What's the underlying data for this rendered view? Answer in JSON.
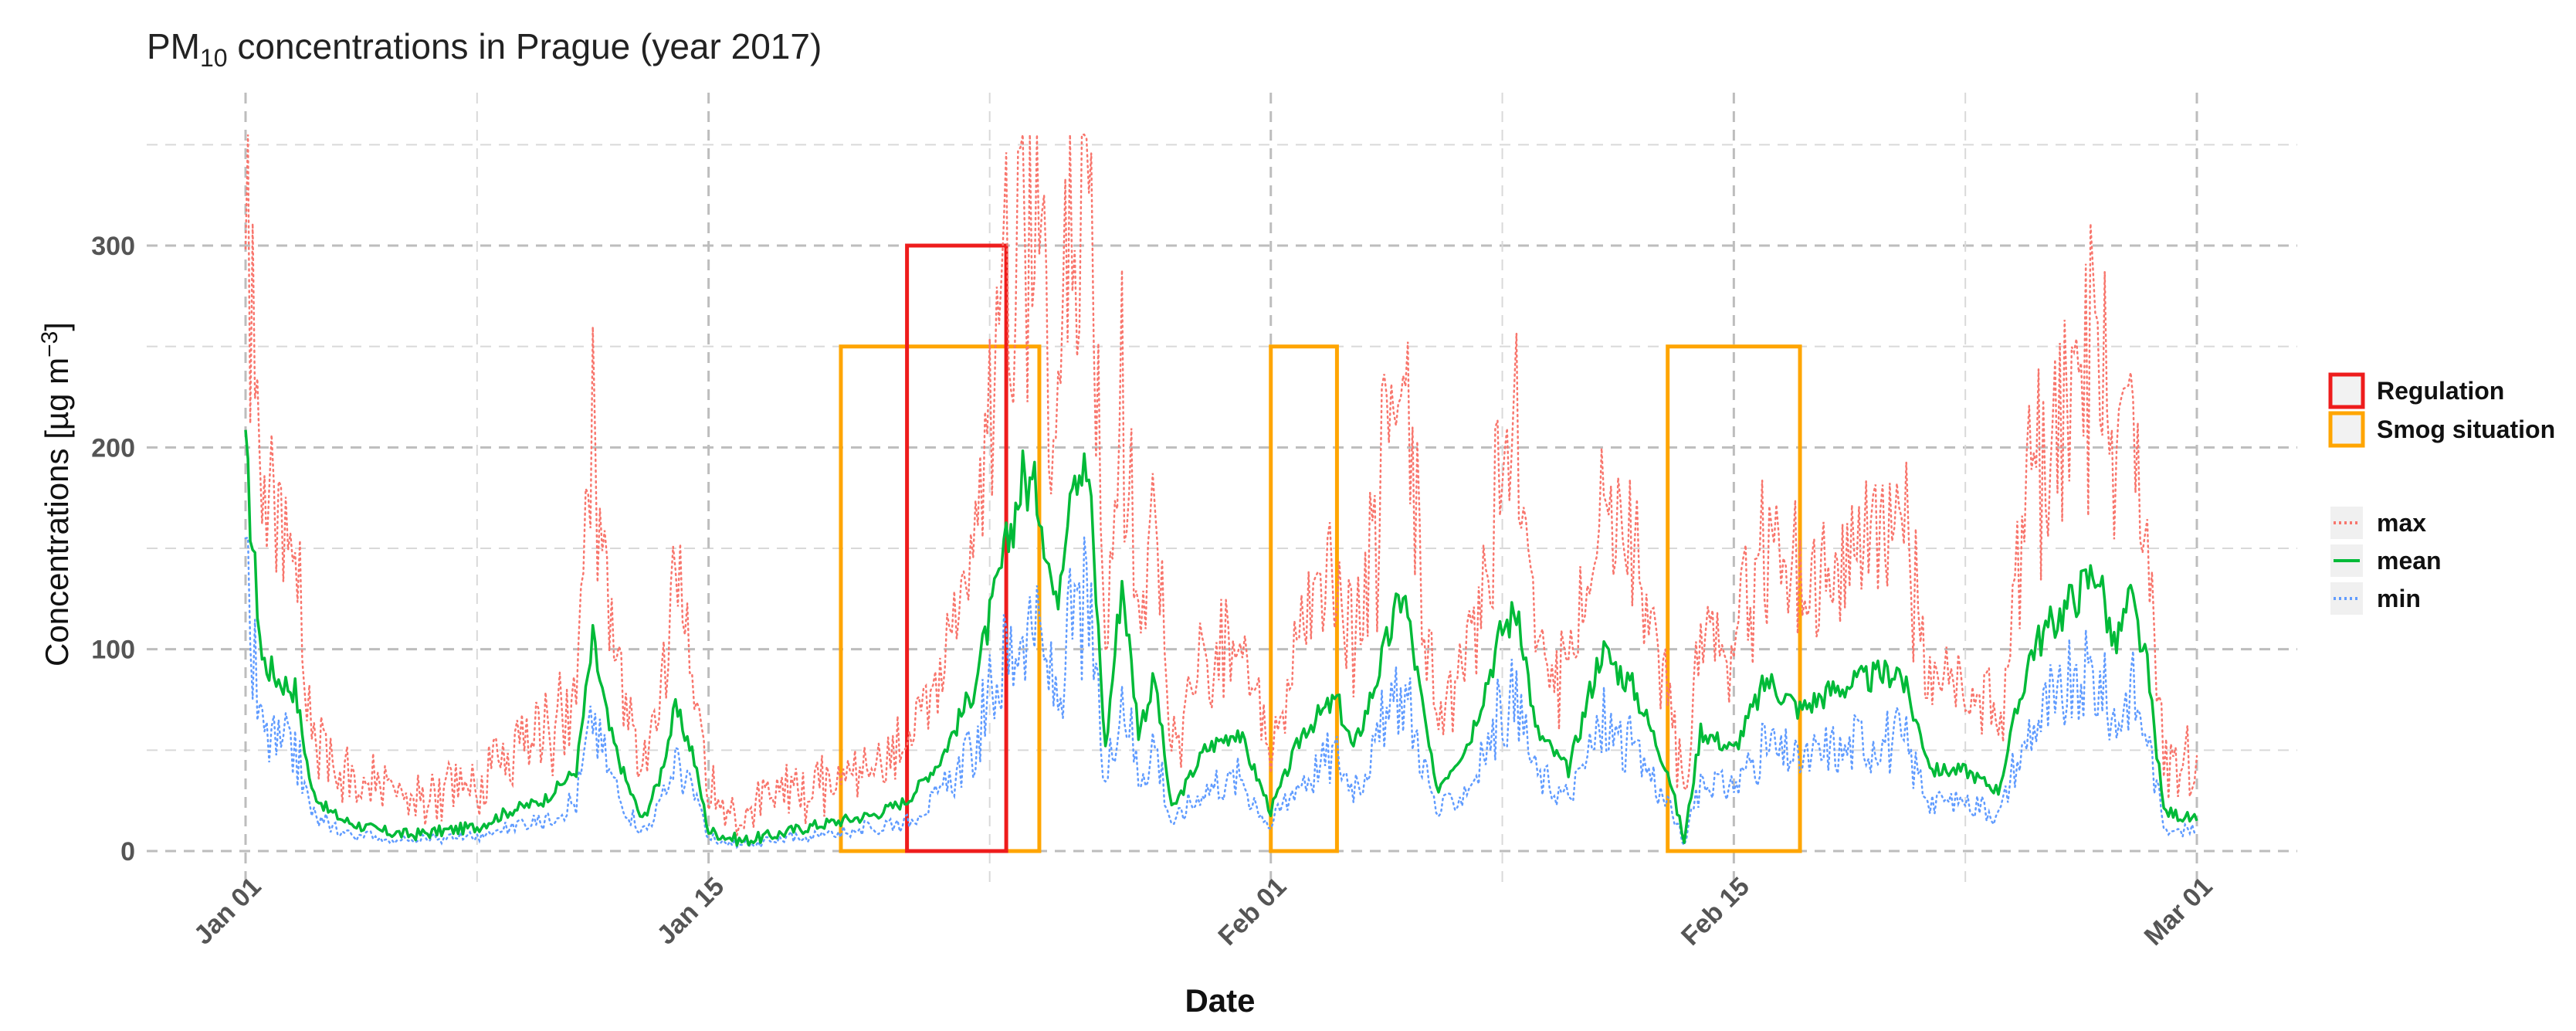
{
  "chart_data": {
    "type": "line",
    "title": "PM10 concentrations in Prague (year 2017)",
    "title_main": "PM",
    "title_sub": "10",
    "title_rest": " concentrations in Prague (year 2017)",
    "xlabel": "Date",
    "ylabel": "Concentrations [µg m",
    "ylabel_sup": "−3",
    "ylabel_close": "]",
    "xlim": [
      "2017-01-01",
      "2017-03-01"
    ],
    "ylim": [
      0,
      350
    ],
    "grid": true,
    "y_ticks": [
      0,
      100,
      200,
      300
    ],
    "x_ticks": [
      {
        "date": "2017-01-01",
        "label": "Jan 01"
      },
      {
        "date": "2017-01-15",
        "label": "Jan 15"
      },
      {
        "date": "2017-02-01",
        "label": "Feb 01"
      },
      {
        "date": "2017-02-15",
        "label": "Feb 15"
      },
      {
        "date": "2017-03-01",
        "label": "Mar 01"
      }
    ],
    "legend_placement": "right",
    "legend_boxes": [
      {
        "name": "Regulation",
        "color": "#ee1c1c"
      },
      {
        "name": "Smog situation",
        "color": "#ffa500"
      }
    ],
    "legend_lines": [
      {
        "name": "max",
        "color": "#f8766d",
        "dash": "dotted"
      },
      {
        "name": "mean",
        "color": "#00ba38",
        "dash": "solid"
      },
      {
        "name": "min",
        "color": "#619cff",
        "dash": "dotted"
      }
    ],
    "mean_series": [
      [
        "2017-01-01",
        195
      ],
      [
        "2017-01-01T12",
        95
      ],
      [
        "2017-01-02",
        85
      ],
      [
        "2017-01-02T12",
        80
      ],
      [
        "2017-01-03",
        30
      ],
      [
        "2017-01-03T12",
        20
      ],
      [
        "2017-01-04",
        15
      ],
      [
        "2017-01-05",
        10
      ],
      [
        "2017-01-06",
        8
      ],
      [
        "2017-01-07",
        10
      ],
      [
        "2017-01-08",
        12
      ],
      [
        "2017-01-09",
        20
      ],
      [
        "2017-01-10",
        25
      ],
      [
        "2017-01-11",
        40
      ],
      [
        "2017-01-11T12",
        104
      ],
      [
        "2017-01-12",
        60
      ],
      [
        "2017-01-12T12",
        35
      ],
      [
        "2017-01-13",
        15
      ],
      [
        "2017-01-13T12",
        35
      ],
      [
        "2017-01-14",
        70
      ],
      [
        "2017-01-14T12",
        50
      ],
      [
        "2017-01-15",
        10
      ],
      [
        "2017-01-16",
        5
      ],
      [
        "2017-01-17",
        8
      ],
      [
        "2017-01-18",
        12
      ],
      [
        "2017-01-19",
        15
      ],
      [
        "2017-01-20",
        18
      ],
      [
        "2017-01-21",
        25
      ],
      [
        "2017-01-22",
        45
      ],
      [
        "2017-01-23",
        80
      ],
      [
        "2017-01-24",
        150
      ],
      [
        "2017-01-24T12",
        185
      ],
      [
        "2017-01-25",
        175
      ],
      [
        "2017-01-25T12",
        120
      ],
      [
        "2017-01-26",
        195
      ],
      [
        "2017-01-26T12",
        185
      ],
      [
        "2017-01-27",
        50
      ],
      [
        "2017-01-27T12",
        135
      ],
      [
        "2017-01-28",
        60
      ],
      [
        "2017-01-28T12",
        85
      ],
      [
        "2017-01-29",
        20
      ],
      [
        "2017-01-30",
        50
      ],
      [
        "2017-01-31",
        60
      ],
      [
        "2017-02-01",
        20
      ],
      [
        "2017-02-02",
        60
      ],
      [
        "2017-02-03",
        75
      ],
      [
        "2017-02-03T12",
        50
      ],
      [
        "2017-02-04",
        75
      ],
      [
        "2017-02-05",
        130
      ],
      [
        "2017-02-05T12",
        80
      ],
      [
        "2017-02-06",
        30
      ],
      [
        "2017-02-07",
        55
      ],
      [
        "2017-02-08",
        110
      ],
      [
        "2017-02-08T12",
        120
      ],
      [
        "2017-02-09",
        60
      ],
      [
        "2017-02-10",
        40
      ],
      [
        "2017-02-11",
        100
      ],
      [
        "2017-02-12",
        80
      ],
      [
        "2017-02-13",
        40
      ],
      [
        "2017-02-13T12",
        5
      ],
      [
        "2017-02-14",
        60
      ],
      [
        "2017-02-15",
        50
      ],
      [
        "2017-02-16",
        85
      ],
      [
        "2017-02-17",
        70
      ],
      [
        "2017-02-18",
        80
      ],
      [
        "2017-02-19",
        85
      ],
      [
        "2017-02-20",
        90
      ],
      [
        "2017-02-21",
        40
      ],
      [
        "2017-02-22",
        40
      ],
      [
        "2017-02-23",
        30
      ],
      [
        "2017-02-24",
        100
      ],
      [
        "2017-02-25",
        120
      ],
      [
        "2017-02-26",
        140
      ],
      [
        "2017-02-26T12",
        100
      ],
      [
        "2017-02-27",
        125
      ],
      [
        "2017-02-27T12",
        90
      ],
      [
        "2017-02-28",
        20
      ],
      [
        "2017-03-01",
        15
      ]
    ],
    "regions": [
      {
        "type": "Regulation",
        "x_start": "2017-01-21",
        "x_end": "2017-01-24",
        "y_top": 300
      },
      {
        "type": "Smog situation",
        "x_start": "2017-01-19",
        "x_end": "2017-01-25",
        "y_top": 250
      },
      {
        "type": "Smog situation",
        "x_start": "2017-02-01",
        "x_end": "2017-02-03",
        "y_top": 250
      },
      {
        "type": "Smog situation",
        "x_start": "2017-02-13",
        "x_end": "2017-02-17",
        "y_top": 250
      }
    ]
  }
}
